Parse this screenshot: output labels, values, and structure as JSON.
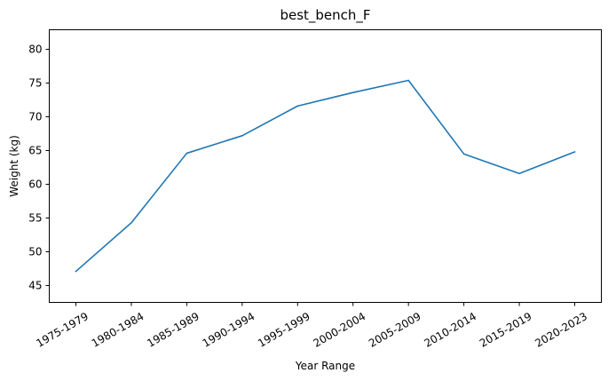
{
  "chart_data": {
    "type": "line",
    "title": "best_bench_F",
    "xlabel": "Year Range",
    "ylabel": "Weight (kg)",
    "categories": [
      "1975-1979",
      "1980-1984",
      "1985-1989",
      "1990-1994",
      "1995-1999",
      "2000-2004",
      "2005-2009",
      "2010-2014",
      "2015-2019",
      "2020-2023"
    ],
    "series": [
      {
        "values": [
          47.1,
          54.3,
          64.6,
          67.2,
          71.6,
          73.6,
          75.4,
          64.5,
          61.6,
          64.8
        ]
      }
    ],
    "ylim": [
      42.5,
      82.9
    ],
    "yticks": [
      45,
      50,
      55,
      60,
      65,
      70,
      75,
      80
    ],
    "grid": false,
    "colors": {
      "line": "#1f77b4",
      "axes": "#000000",
      "background": "#ffffff"
    }
  }
}
